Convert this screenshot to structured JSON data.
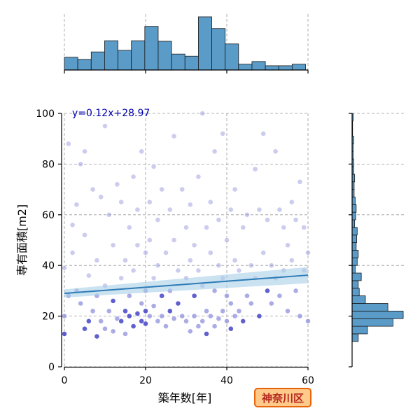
{
  "chart_data": {
    "type": "scatter",
    "xlabel": "築年数[年]",
    "ylabel": "専有面積[m2]",
    "xlim": [
      0,
      60
    ],
    "ylim": [
      0,
      100
    ],
    "xticks": [
      "0",
      "20",
      "40",
      "60"
    ],
    "yticks": [
      "0",
      "20",
      "40",
      "60",
      "80",
      "100"
    ],
    "grid": true,
    "annotation": "y=0.12x+28.97",
    "region_label": "神奈川区",
    "regression": {
      "slope": 0.12,
      "intercept": 28.97
    },
    "x_histogram": {
      "bin_edges": [
        0,
        3.3,
        6.6,
        9.9,
        13.2,
        16.5,
        19.8,
        23.1,
        26.4,
        29.7,
        33.0,
        36.3,
        39.6,
        42.9,
        46.2,
        49.5,
        52.8,
        56.1,
        59.4
      ],
      "counts": [
        24,
        20,
        34,
        55,
        37,
        55,
        82,
        54,
        30,
        26,
        100,
        78,
        49,
        11,
        16,
        8,
        8,
        11
      ]
    },
    "y_histogram": {
      "bin_edges": [
        10,
        13,
        16,
        19,
        22,
        25,
        28,
        31,
        34,
        37,
        40,
        43,
        46,
        49,
        52,
        55,
        58,
        61,
        64,
        67,
        70,
        73,
        76,
        79,
        82,
        85,
        88,
        91,
        94,
        97,
        100
      ],
      "counts": [
        12,
        30,
        80,
        100,
        70,
        26,
        14,
        12,
        18,
        6,
        10,
        12,
        8,
        9,
        10,
        5,
        7,
        8,
        6,
        4,
        4,
        5,
        3,
        3,
        2,
        2,
        3,
        1,
        1,
        2
      ]
    },
    "points": [
      [
        0,
        13
      ],
      [
        0,
        20
      ],
      [
        0,
        39
      ],
      [
        1,
        88
      ],
      [
        1,
        28
      ],
      [
        2,
        45
      ],
      [
        2,
        56
      ],
      [
        3,
        64
      ],
      [
        3,
        30
      ],
      [
        4,
        80
      ],
      [
        4,
        25
      ],
      [
        5,
        85
      ],
      [
        5,
        15
      ],
      [
        5,
        52
      ],
      [
        6,
        36
      ],
      [
        6,
        18
      ],
      [
        7,
        22
      ],
      [
        7,
        70
      ],
      [
        8,
        12
      ],
      [
        8,
        42
      ],
      [
        8,
        28
      ],
      [
        9,
        67
      ],
      [
        9,
        18
      ],
      [
        10,
        15
      ],
      [
        10,
        95
      ],
      [
        10,
        32
      ],
      [
        11,
        22
      ],
      [
        11,
        60
      ],
      [
        12,
        14
      ],
      [
        12,
        48
      ],
      [
        12,
        26
      ],
      [
        13,
        72
      ],
      [
        13,
        19
      ],
      [
        14,
        18
      ],
      [
        14,
        35
      ],
      [
        14,
        65
      ],
      [
        15,
        22
      ],
      [
        15,
        42
      ],
      [
        15,
        13
      ],
      [
        16,
        20
      ],
      [
        16,
        55
      ],
      [
        16,
        28
      ],
      [
        17,
        16
      ],
      [
        17,
        75
      ],
      [
        17,
        38
      ],
      [
        18,
        21
      ],
      [
        18,
        48
      ],
      [
        18,
        62
      ],
      [
        19,
        18
      ],
      [
        19,
        25
      ],
      [
        19,
        85
      ],
      [
        20,
        22
      ],
      [
        20,
        30
      ],
      [
        20,
        45
      ],
      [
        20,
        17
      ],
      [
        21,
        20
      ],
      [
        21,
        65
      ],
      [
        21,
        50
      ],
      [
        22,
        24
      ],
      [
        22,
        79
      ],
      [
        22,
        35
      ],
      [
        23,
        18
      ],
      [
        23,
        40
      ],
      [
        23,
        58
      ],
      [
        24,
        20
      ],
      [
        24,
        70
      ],
      [
        24,
        28
      ],
      [
        25,
        16
      ],
      [
        25,
        45
      ],
      [
        26,
        22
      ],
      [
        26,
        62
      ],
      [
        26,
        30
      ],
      [
        27,
        91
      ],
      [
        27,
        19
      ],
      [
        27,
        50
      ],
      [
        28,
        25
      ],
      [
        28,
        38
      ],
      [
        29,
        20
      ],
      [
        29,
        70
      ],
      [
        30,
        18
      ],
      [
        30,
        55
      ],
      [
        30,
        35
      ],
      [
        31,
        14
      ],
      [
        31,
        42
      ],
      [
        31,
        64
      ],
      [
        32,
        20
      ],
      [
        32,
        48
      ],
      [
        32,
        28
      ],
      [
        33,
        16
      ],
      [
        33,
        38
      ],
      [
        33,
        75
      ],
      [
        34,
        100
      ],
      [
        34,
        18
      ],
      [
        34,
        32
      ],
      [
        35,
        22
      ],
      [
        35,
        55
      ],
      [
        35,
        13
      ],
      [
        36,
        20
      ],
      [
        36,
        45
      ],
      [
        36,
        65
      ],
      [
        37,
        16
      ],
      [
        37,
        30
      ],
      [
        37,
        85
      ],
      [
        38,
        19
      ],
      [
        38,
        40
      ],
      [
        38,
        58
      ],
      [
        39,
        22
      ],
      [
        39,
        35
      ],
      [
        39,
        92
      ],
      [
        40,
        18
      ],
      [
        40,
        28
      ],
      [
        40,
        50
      ],
      [
        41,
        25
      ],
      [
        41,
        62
      ],
      [
        41,
        15
      ],
      [
        42,
        20
      ],
      [
        42,
        42
      ],
      [
        42,
        70
      ],
      [
        43,
        22
      ],
      [
        43,
        38
      ],
      [
        44,
        18
      ],
      [
        44,
        55
      ],
      [
        45,
        28
      ],
      [
        45,
        60
      ],
      [
        46,
        40
      ],
      [
        46,
        25
      ],
      [
        47,
        78
      ],
      [
        47,
        35
      ],
      [
        48,
        62
      ],
      [
        48,
        20
      ],
      [
        49,
        45
      ],
      [
        49,
        92
      ],
      [
        50,
        30
      ],
      [
        50,
        58
      ],
      [
        51,
        25
      ],
      [
        51,
        40
      ],
      [
        52,
        85
      ],
      [
        52,
        35
      ],
      [
        53,
        62
      ],
      [
        53,
        28
      ],
      [
        54,
        55
      ],
      [
        54,
        38
      ],
      [
        55,
        48
      ],
      [
        55,
        22
      ],
      [
        56,
        42
      ],
      [
        56,
        65
      ],
      [
        57,
        30
      ],
      [
        57,
        58
      ],
      [
        58,
        73
      ],
      [
        58,
        20
      ],
      [
        59,
        38
      ],
      [
        59,
        55
      ],
      [
        60,
        18
      ],
      [
        60,
        45
      ]
    ]
  }
}
